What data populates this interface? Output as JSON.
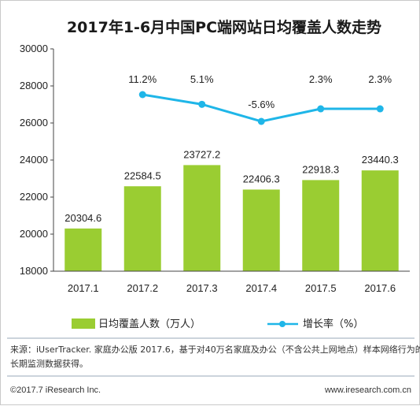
{
  "chart_data": {
    "type": "bar",
    "title": "2017年1-6月中国PC端网站日均覆盖人数走势",
    "categories": [
      "2017.1",
      "2017.2",
      "2017.3",
      "2017.4",
      "2017.5",
      "2017.6"
    ],
    "series": [
      {
        "name": "日均覆盖人数（万人）",
        "type": "bar",
        "values": [
          20304.6,
          22584.5,
          23727.2,
          22406.3,
          22918.3,
          23440.3
        ],
        "labels": [
          "20304.6",
          "22584.5",
          "23727.2",
          "22406.3",
          "22918.3",
          "23440.3"
        ]
      },
      {
        "name": "增长率（%）",
        "type": "line",
        "values": [
          null,
          11.2,
          5.1,
          -5.6,
          2.3,
          2.3
        ],
        "labels": [
          "",
          "11.2%",
          "5.1%",
          "-5.6%",
          "2.3%",
          "2.3%"
        ]
      }
    ],
    "y_ticks": [
      "18000",
      "20000",
      "22000",
      "24000",
      "26000",
      "28000",
      "30000"
    ],
    "ylim": [
      18000,
      30000
    ],
    "grid": false,
    "legend_position": "bottom",
    "colors": {
      "bar": "#9acd32",
      "line": "#1fb6e8"
    }
  },
  "source_text": {
    "line1": "来源：iUserTracker. 家庭办公版 2017.6，基于对40万名家庭及办公（不含公共上网地点）样本网络行为的",
    "line2": "长期监测数据获得。"
  },
  "footer": {
    "left": "©2017.7 iResearch Inc.",
    "right": "www.iresearch.com.cn"
  }
}
